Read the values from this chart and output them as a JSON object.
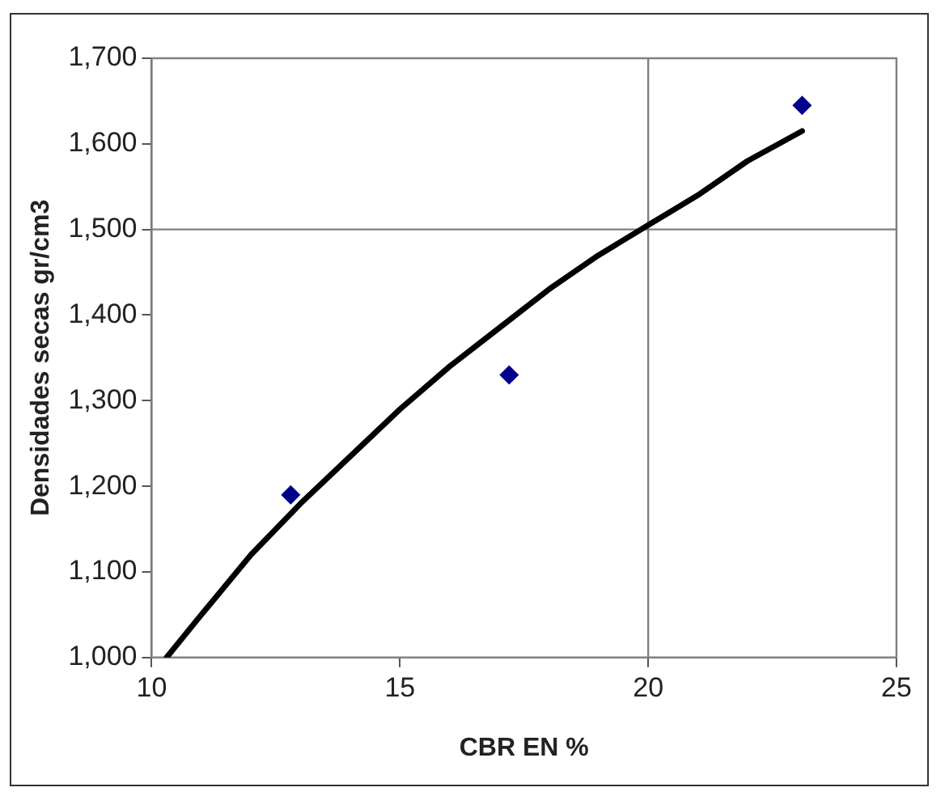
{
  "chart_data": {
    "type": "scatter",
    "xlabel": "CBR EN %",
    "ylabel": "Densidades secas gr/cm3",
    "xlim": [
      10,
      25
    ],
    "xticks": [
      10,
      15,
      20,
      25
    ],
    "ylim": [
      1000,
      1700
    ],
    "yticks": [
      {
        "value": 1000,
        "label": "1,000"
      },
      {
        "value": 1100,
        "label": "1,100"
      },
      {
        "value": 1200,
        "label": "1,200"
      },
      {
        "value": 1300,
        "label": "1,300"
      },
      {
        "value": 1400,
        "label": "1,400"
      },
      {
        "value": 1500,
        "label": "1,500"
      },
      {
        "value": 1600,
        "label": "1,600"
      },
      {
        "value": 1700,
        "label": "1,700"
      }
    ],
    "grid": false,
    "legend": false,
    "marker": "diamond",
    "series": [
      {
        "color": "#00008b",
        "x": [
          12.8,
          17.2,
          23.1
        ],
        "values": [
          1190,
          1330,
          1645
        ]
      },
      {
        "type": "line",
        "color": "#000000",
        "marker": "none",
        "x": [
          10.3,
          11,
          12,
          13,
          14,
          15,
          16,
          17,
          18,
          19,
          20,
          21,
          22,
          23.1
        ],
        "values": [
          1000,
          1050,
          1120,
          1180,
          1235,
          1290,
          1340,
          1385,
          1430,
          1470,
          1505,
          1540,
          1580,
          1615
        ]
      }
    ],
    "ref_lines": [
      {
        "axis": "x",
        "value": 20,
        "color": "#808080"
      },
      {
        "axis": "y",
        "value": 1500,
        "color": "#808080"
      }
    ]
  }
}
